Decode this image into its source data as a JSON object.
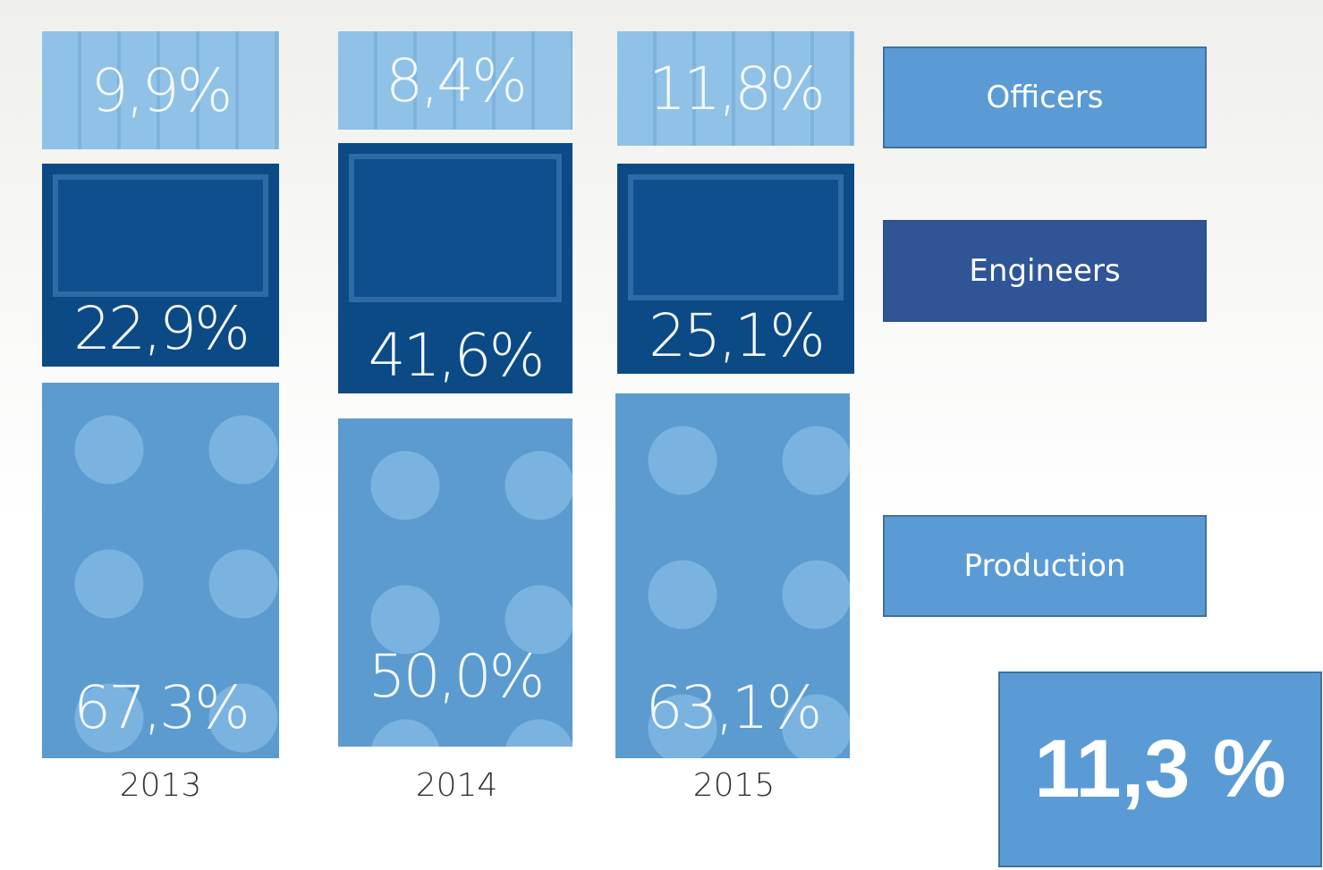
{
  "columns": [
    {
      "year": "2013",
      "officers": "9,9%",
      "engineers": "22,9%",
      "production": "67,3%"
    },
    {
      "year": "2014",
      "officers": "8,4%",
      "engineers": "41,6%",
      "production": "50,0%"
    },
    {
      "year": "2015",
      "officers": "11,8%",
      "engineers": "25,1%",
      "production": "63,1%"
    }
  ],
  "legend": {
    "officers": "Officers",
    "engineers": "Engineers",
    "production": "Production"
  },
  "highlight": "11,3 %"
}
